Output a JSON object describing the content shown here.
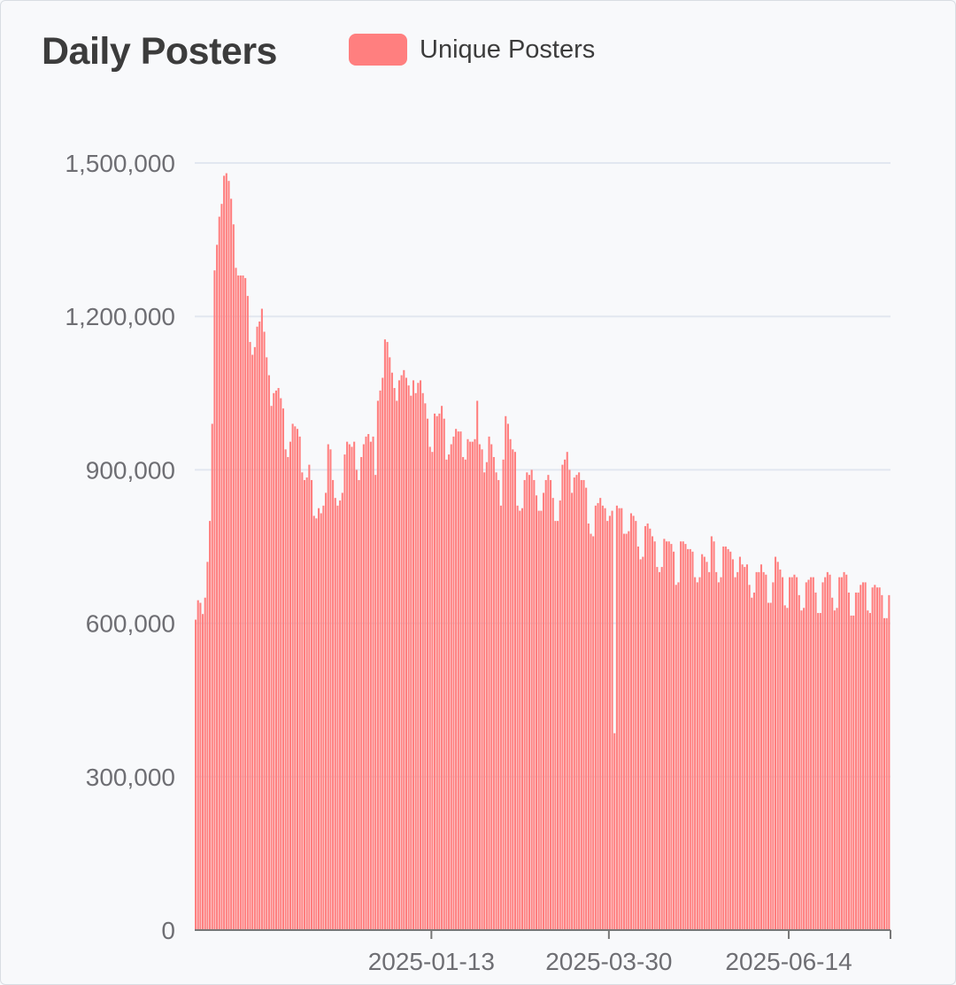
{
  "chart_data": {
    "type": "bar",
    "title": "Daily Posters",
    "series": [
      {
        "name": "Unique Posters",
        "color": "#ff7f7f",
        "values": [
          607000,
          645000,
          640000,
          618000,
          650000,
          720000,
          800000,
          990000,
          1290000,
          1340000,
          1395000,
          1420000,
          1475000,
          1480000,
          1465000,
          1430000,
          1380000,
          1295000,
          1280000,
          1280000,
          1280000,
          1275000,
          1240000,
          1150000,
          1125000,
          1140000,
          1180000,
          1190000,
          1215000,
          1170000,
          1120000,
          1085000,
          1025000,
          1050000,
          1055000,
          1060000,
          1040000,
          1020000,
          940000,
          925000,
          955000,
          990000,
          985000,
          980000,
          965000,
          895000,
          880000,
          885000,
          910000,
          880000,
          810000,
          805000,
          825000,
          815000,
          830000,
          855000,
          950000,
          940000,
          880000,
          845000,
          830000,
          840000,
          855000,
          930000,
          955000,
          950000,
          945000,
          955000,
          900000,
          880000,
          925000,
          950000,
          965000,
          970000,
          955000,
          965000,
          890000,
          1035000,
          1055000,
          1080000,
          1155000,
          1150000,
          1120000,
          1090000,
          1060000,
          1035000,
          1075000,
          1085000,
          1095000,
          1080000,
          1065000,
          1045000,
          1075000,
          1050000,
          1070000,
          1075000,
          1050000,
          1030000,
          1000000,
          945000,
          935000,
          1010000,
          1005000,
          1010000,
          1025000,
          1000000,
          920000,
          930000,
          950000,
          965000,
          980000,
          975000,
          975000,
          925000,
          920000,
          960000,
          955000,
          955000,
          960000,
          1035000,
          950000,
          940000,
          895000,
          915000,
          965000,
          950000,
          925000,
          895000,
          880000,
          830000,
          920000,
          1005000,
          990000,
          960000,
          940000,
          935000,
          830000,
          820000,
          825000,
          880000,
          895000,
          890000,
          900000,
          880000,
          850000,
          820000,
          820000,
          855000,
          880000,
          890000,
          880000,
          845000,
          800000,
          800000,
          840000,
          910000,
          920000,
          935000,
          900000,
          855000,
          885000,
          890000,
          895000,
          880000,
          880000,
          865000,
          795000,
          775000,
          770000,
          830000,
          835000,
          845000,
          830000,
          825000,
          800000,
          810000,
          820000,
          385000,
          830000,
          825000,
          825000,
          775000,
          775000,
          780000,
          815000,
          810000,
          800000,
          750000,
          725000,
          730000,
          790000,
          795000,
          785000,
          770000,
          760000,
          710000,
          700000,
          710000,
          765000,
          760000,
          760000,
          755000,
          740000,
          675000,
          680000,
          760000,
          760000,
          755000,
          745000,
          745000,
          740000,
          690000,
          680000,
          690000,
          735000,
          730000,
          720000,
          700000,
          770000,
          760000,
          700000,
          680000,
          690000,
          750000,
          750000,
          745000,
          740000,
          725000,
          690000,
          700000,
          730000,
          715000,
          710000,
          715000,
          675000,
          650000,
          660000,
          700000,
          700000,
          715000,
          700000,
          695000,
          640000,
          640000,
          680000,
          730000,
          720000,
          705000,
          690000,
          635000,
          630000,
          690000,
          690000,
          695000,
          690000,
          655000,
          625000,
          630000,
          680000,
          685000,
          690000,
          690000,
          660000,
          620000,
          620000,
          680000,
          690000,
          700000,
          695000,
          650000,
          625000,
          630000,
          690000,
          690000,
          700000,
          695000,
          660000,
          615000,
          615000,
          660000,
          660000,
          675000,
          680000,
          680000,
          625000,
          620000,
          670000,
          675000,
          670000,
          670000,
          655000,
          610000,
          610000,
          655000
        ]
      }
    ],
    "x_tick_labels": [
      "2025-01-13",
      "2025-03-30",
      "2025-06-14"
    ],
    "y_tick_labels": [
      "0",
      "300,000",
      "600,000",
      "900,000",
      "1,200,000",
      "1,500,000"
    ],
    "ylim": [
      0,
      1500000
    ],
    "ystep": 300000,
    "xlabel": "",
    "ylabel": "",
    "grid": true,
    "legend_position": "top",
    "colors": {
      "bar": "#ff7f7f",
      "grid": "#e2e7f0",
      "axis": "#777777",
      "tick_text": "#6e6e73",
      "title": "#3c3c3c"
    }
  }
}
